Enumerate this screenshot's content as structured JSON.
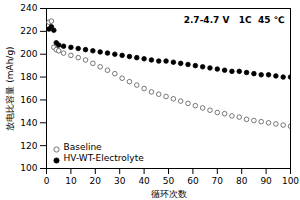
{
  "chart_data": {
    "type": "scatter",
    "annotation": "2.7-4.7 V   1C  45 ℃",
    "x_label": "循环次数",
    "y_label": "放电比容量 (mAh/g)",
    "x": [
      1,
      2,
      3,
      4,
      5,
      7,
      10,
      13,
      16,
      19,
      22,
      25,
      28,
      31,
      34,
      37,
      40,
      43,
      46,
      49,
      52,
      55,
      58,
      61,
      64,
      67,
      70,
      73,
      76,
      79,
      82,
      85,
      88,
      91,
      94,
      97,
      100
    ],
    "series": [
      {
        "name": "Baseline",
        "color": "#555555",
        "marker": "open_circle",
        "line_style": "none",
        "values": [
          228,
          229,
          206,
          204,
          203,
          201,
          199,
          197,
          195,
          192,
          189,
          186,
          183,
          179,
          176,
          173,
          170,
          167,
          165,
          163,
          161,
          159,
          157,
          155,
          153,
          151,
          149,
          148,
          146,
          145,
          143,
          142,
          141,
          140,
          139,
          138,
          137
        ]
      },
      {
        "name": "HV-WT-Electrolyte",
        "color": "#000000",
        "marker": "filled_circle",
        "line_style": "none",
        "values": [
          222,
          224,
          221,
          210,
          208,
          207,
          206,
          205,
          204,
          203,
          202,
          201,
          200,
          199,
          198,
          197,
          196,
          195,
          194,
          194,
          193,
          192,
          191,
          190,
          189,
          188,
          187,
          186,
          185,
          185,
          184,
          183,
          182,
          182,
          181,
          180,
          180
        ]
      }
    ],
    "xlim": [
      0,
      100
    ],
    "xticks": [
      0,
      10,
      20,
      30,
      40,
      50,
      60,
      70,
      80,
      90,
      100
    ],
    "ylim": [
      100,
      240
    ],
    "yticks": [
      100,
      120,
      140,
      160,
      180,
      200,
      220,
      240
    ],
    "grid": false,
    "legend": "lower left"
  }
}
